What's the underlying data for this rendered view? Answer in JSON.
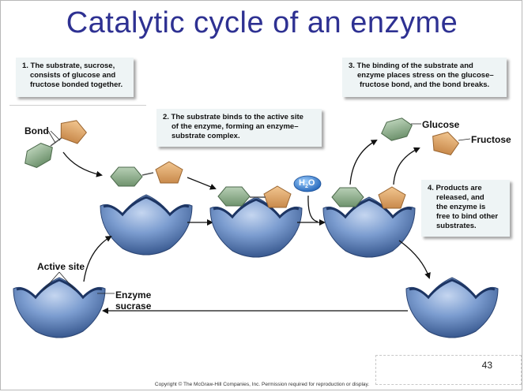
{
  "title": "Catalytic cycle of an enzyme",
  "steps": [
    {
      "lines": [
        "1. The substrate, sucrose,",
        "consists of glucose and",
        "fructose bonded together."
      ]
    },
    {
      "lines": [
        "2. The substrate binds to the active site",
        "of the enzyme, forming an enzyme–",
        "substrate complex."
      ]
    },
    {
      "lines": [
        "3. The binding of the substrate and",
        "enzyme places stress on the  glucose–",
        "fructose bond, and the bond breaks."
      ]
    },
    {
      "lines": [
        "4. Products are",
        "released, and",
        "the enzyme is",
        "free to bind other",
        "substrates."
      ]
    }
  ],
  "labels": {
    "bond": "Bond",
    "glucose": "Glucose",
    "fructose": "Fructose",
    "active_site": "Active site",
    "enzyme_line1": "Enzyme",
    "enzyme_line2": "sucrase",
    "water_h": "H",
    "water_sub": "2",
    "water_o": "O"
  },
  "colors": {
    "title": "#2e3192",
    "glucose": "#8fb08e",
    "fructose": "#e2a96e",
    "enzyme": "#6d8fc4",
    "water": "#3d7fd1"
  },
  "slide_number": "43",
  "copyright": "Copyright © The McGraw-Hill Companies, Inc. Permission required for reproduction or display."
}
